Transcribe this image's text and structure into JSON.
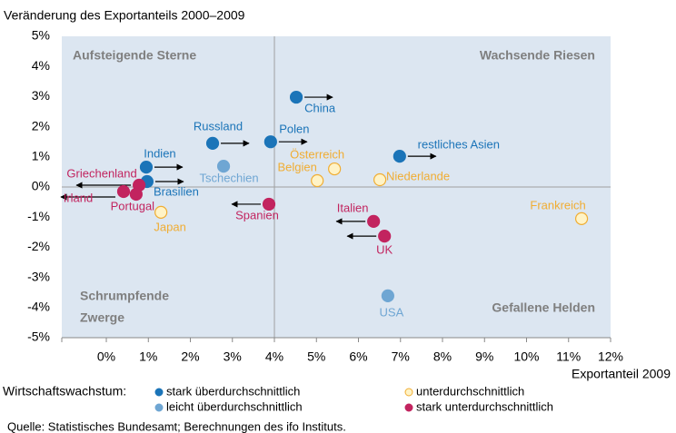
{
  "chart_data": {
    "type": "scatter",
    "title": "Veränderung des Exportanteils 2000–2009",
    "xlabel": "Exportanteil 2009",
    "legend_title": "Wirtschaftswachstum:",
    "source": "Quelle: Statistisches Bundesamt; Berechnungen des ifo Instituts.",
    "quadrant_labels": [
      "Aufsteigende Sterne",
      "Wachsende Riesen",
      [
        "Schrumpfende",
        "Zwerge"
      ],
      "Gefallene Helden"
    ],
    "xlim": [
      -1.06,
      12
    ],
    "ylim": [
      -5,
      5
    ],
    "x_divider": 4,
    "y_divider": 0,
    "xticks": [
      {
        "value": 0,
        "label": "0%"
      },
      {
        "value": 1,
        "label": "1%"
      },
      {
        "value": 2,
        "label": "2%"
      },
      {
        "value": 3,
        "label": "3%"
      },
      {
        "value": 4,
        "label": "4%"
      },
      {
        "value": 5,
        "label": "5%"
      },
      {
        "value": 6,
        "label": "6%"
      },
      {
        "value": 7,
        "label": "7%"
      },
      {
        "value": 8,
        "label": "8%"
      },
      {
        "value": 9,
        "label": "9%"
      },
      {
        "value": 10,
        "label": "10%"
      },
      {
        "value": 11,
        "label": "11%"
      },
      {
        "value": 12,
        "label": "12%"
      }
    ],
    "yticks": [
      {
        "value": -5,
        "label": "-5%"
      },
      {
        "value": -4,
        "label": "-4%"
      },
      {
        "value": -3,
        "label": "-3%"
      },
      {
        "value": -2,
        "label": "-2%"
      },
      {
        "value": -1,
        "label": "-1%"
      },
      {
        "value": 0,
        "label": "0%"
      },
      {
        "value": 1,
        "label": "1%"
      },
      {
        "value": 2,
        "label": "2%"
      },
      {
        "value": 3,
        "label": "3%"
      },
      {
        "value": 4,
        "label": "4%"
      },
      {
        "value": 5,
        "label": "5%"
      }
    ],
    "series": [
      {
        "name": "stark überdurchschnittlich",
        "color": "#1b74b8",
        "facecolor": "#1b74b8",
        "labels": [
          "China",
          "Russland",
          "Polen",
          "Indien",
          "Brasilien",
          "restliches Asien"
        ],
        "x": [
          4.52,
          2.53,
          3.91,
          0.95,
          0.97,
          6.98
        ],
        "y": [
          2.98,
          1.45,
          1.5,
          0.66,
          0.18,
          1.02
        ],
        "arrows": [
          "right",
          "right",
          "right",
          "right",
          "right",
          "right"
        ]
      },
      {
        "name": "leicht überdurchschnittlich",
        "color": "#6fa6d3",
        "facecolor": "#6fa6d3",
        "labels": [
          "Tschechien",
          "USA"
        ],
        "x": [
          2.79,
          6.7
        ],
        "y": [
          0.69,
          -3.61
        ],
        "arrows": [
          null,
          null
        ]
      },
      {
        "name": "unterdurchschnittlich",
        "color": "#f0ad33",
        "facecolor": "#fff3c6",
        "labels": [
          "Österreich",
          "Belgien",
          "Niederlande",
          "Frankreich",
          "Japan"
        ],
        "x": [
          5.43,
          5.02,
          6.51,
          11.31,
          1.3
        ],
        "y": [
          0.6,
          0.21,
          0.24,
          -1.05,
          -0.84
        ],
        "arrows": [
          null,
          null,
          null,
          null,
          null
        ]
      },
      {
        "name": "stark unterdurchschnittlich",
        "color": "#c2245f",
        "facecolor": "#c2245f",
        "labels": [
          "Griechenland",
          "Irland",
          "Portugal",
          "Spanien",
          "Italien",
          "UK"
        ],
        "x": [
          0.78,
          0.41,
          0.71,
          3.87,
          6.36,
          6.62
        ],
        "y": [
          0.06,
          -0.15,
          -0.24,
          -0.57,
          -1.14,
          -1.63
        ],
        "arrows": [
          "left",
          "left",
          null,
          "left",
          "left",
          "left"
        ]
      }
    ]
  }
}
